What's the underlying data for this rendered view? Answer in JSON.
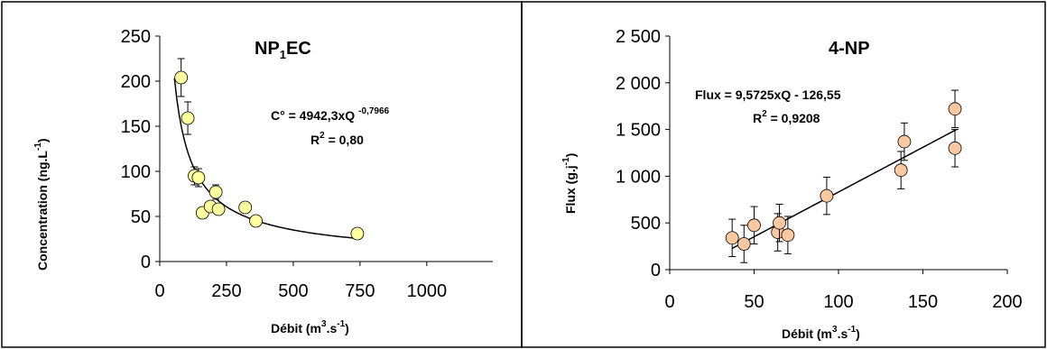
{
  "chart_data": [
    {
      "type": "scatter",
      "title": "NP",
      "title_sub": "1",
      "title_rest": "EC",
      "xlabel": "Débit (m",
      "xlabel_sup1": "3",
      "xlabel_mid": ".s",
      "xlabel_sup2": "-1",
      "xlabel_end": ")",
      "ylabel": "Concentration (ng.L",
      "ylabel_sup": "-1",
      "ylabel_end": ")",
      "xlim": [
        0,
        1200
      ],
      "ylim": [
        0,
        250
      ],
      "xticks": [
        0,
        250,
        500,
        750,
        1000
      ],
      "yticks": [
        0,
        50,
        100,
        150,
        200,
        250
      ],
      "xtick_labels": [
        "0",
        "250",
        "500",
        "750",
        "1000"
      ],
      "ytick_labels": [
        "0",
        "50",
        "100",
        "150",
        "200",
        "250"
      ],
      "marker_color": "#ffffa0",
      "points": [
        {
          "x": 80,
          "y": 204,
          "err": 21
        },
        {
          "x": 105,
          "y": 159,
          "err": 18
        },
        {
          "x": 130,
          "y": 95,
          "err": 10
        },
        {
          "x": 145,
          "y": 93,
          "err": 10
        },
        {
          "x": 160,
          "y": 54,
          "err": 0
        },
        {
          "x": 190,
          "y": 61,
          "err": 0
        },
        {
          "x": 210,
          "y": 77,
          "err": 8
        },
        {
          "x": 220,
          "y": 58,
          "err": 0
        },
        {
          "x": 320,
          "y": 60,
          "err": 0
        },
        {
          "x": 360,
          "y": 45,
          "err": 0
        },
        {
          "x": 740,
          "y": 31,
          "err": 0
        }
      ],
      "fit": {
        "type": "power",
        "a": 4942.3,
        "b": -0.7966,
        "x_range": [
          55,
          745
        ]
      },
      "equation": "C° = 4942,3xQ",
      "equation_exp": "-0,7966",
      "r2_prefix": "R",
      "r2_sup": "2",
      "r2_value": " = 0,80"
    },
    {
      "type": "scatter",
      "title": "4-NP",
      "xlabel": "Débit (m",
      "xlabel_sup1": "3",
      "xlabel_mid": ".s",
      "xlabel_sup2": "-1",
      "xlabel_end": ")",
      "ylabel": "Flux (g.j",
      "ylabel_sup": "-1",
      "ylabel_end": ")",
      "xlim": [
        0,
        200
      ],
      "ylim": [
        0,
        2500
      ],
      "xticks": [
        0,
        50,
        100,
        150,
        200
      ],
      "yticks": [
        0,
        500,
        1000,
        1500,
        2000,
        2500
      ],
      "xtick_labels": [
        "0",
        "50",
        "100",
        "150",
        "200"
      ],
      "ytick_labels": [
        "0",
        "500",
        "1 000",
        "1 500",
        "2 000",
        "2 500"
      ],
      "marker_color": "#f8c8a0",
      "points": [
        {
          "x": 37,
          "y": 340,
          "err": 200
        },
        {
          "x": 44,
          "y": 275,
          "err": 200
        },
        {
          "x": 50,
          "y": 475,
          "err": 200
        },
        {
          "x": 64,
          "y": 400,
          "err": 200
        },
        {
          "x": 65,
          "y": 500,
          "err": 200
        },
        {
          "x": 70,
          "y": 370,
          "err": 200
        },
        {
          "x": 93,
          "y": 790,
          "err": 200
        },
        {
          "x": 137,
          "y": 1065,
          "err": 200
        },
        {
          "x": 139,
          "y": 1370,
          "err": 200
        },
        {
          "x": 169,
          "y": 1300,
          "err": 200
        },
        {
          "x": 169,
          "y": 1720,
          "err": 200
        }
      ],
      "fit": {
        "type": "linear",
        "slope": 9.5725,
        "intercept": -126.55,
        "x_range": [
          37,
          170
        ]
      },
      "equation": "Flux = 9,5725xQ - 126,55",
      "r2_prefix": "R",
      "r2_sup": "2",
      "r2_value": " = 0,9208"
    }
  ]
}
